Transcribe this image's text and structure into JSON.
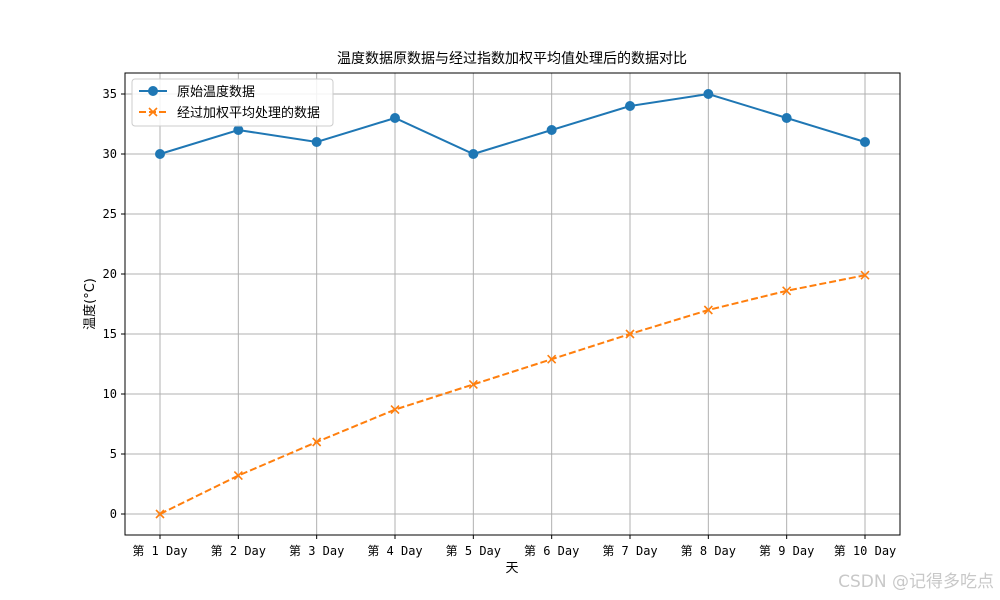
{
  "chart_data": {
    "type": "line",
    "title": "温度数据原数据与经过指数加权平均值处理后的数据对比",
    "xlabel": "天",
    "ylabel": "温度(°C)",
    "categories": [
      "第 1 Day",
      "第 2 Day",
      "第 3 Day",
      "第 4 Day",
      "第 5 Day",
      "第 6 Day",
      "第 7 Day",
      "第 8 Day",
      "第 9 Day",
      "第 10 Day"
    ],
    "ylim": [
      -1.75,
      36.75
    ],
    "yticks": [
      0,
      5,
      10,
      15,
      20,
      25,
      30,
      35
    ],
    "grid": true,
    "legend_position": "top-left",
    "series": [
      {
        "name": "原始温度数据",
        "values": [
          30,
          32,
          31,
          33,
          30,
          32,
          34,
          35,
          33,
          31
        ],
        "color": "#1f77b4",
        "marker": "circle",
        "linestyle": "solid"
      },
      {
        "name": "经过加权平均处理的数据",
        "values": [
          0,
          3.2,
          6.0,
          8.7,
          10.8,
          12.9,
          15.0,
          17.0,
          18.6,
          19.9
        ],
        "color": "#ff7f0e",
        "marker": "x",
        "linestyle": "dashed"
      }
    ]
  },
  "watermark": "CSDN @记得多吃点"
}
